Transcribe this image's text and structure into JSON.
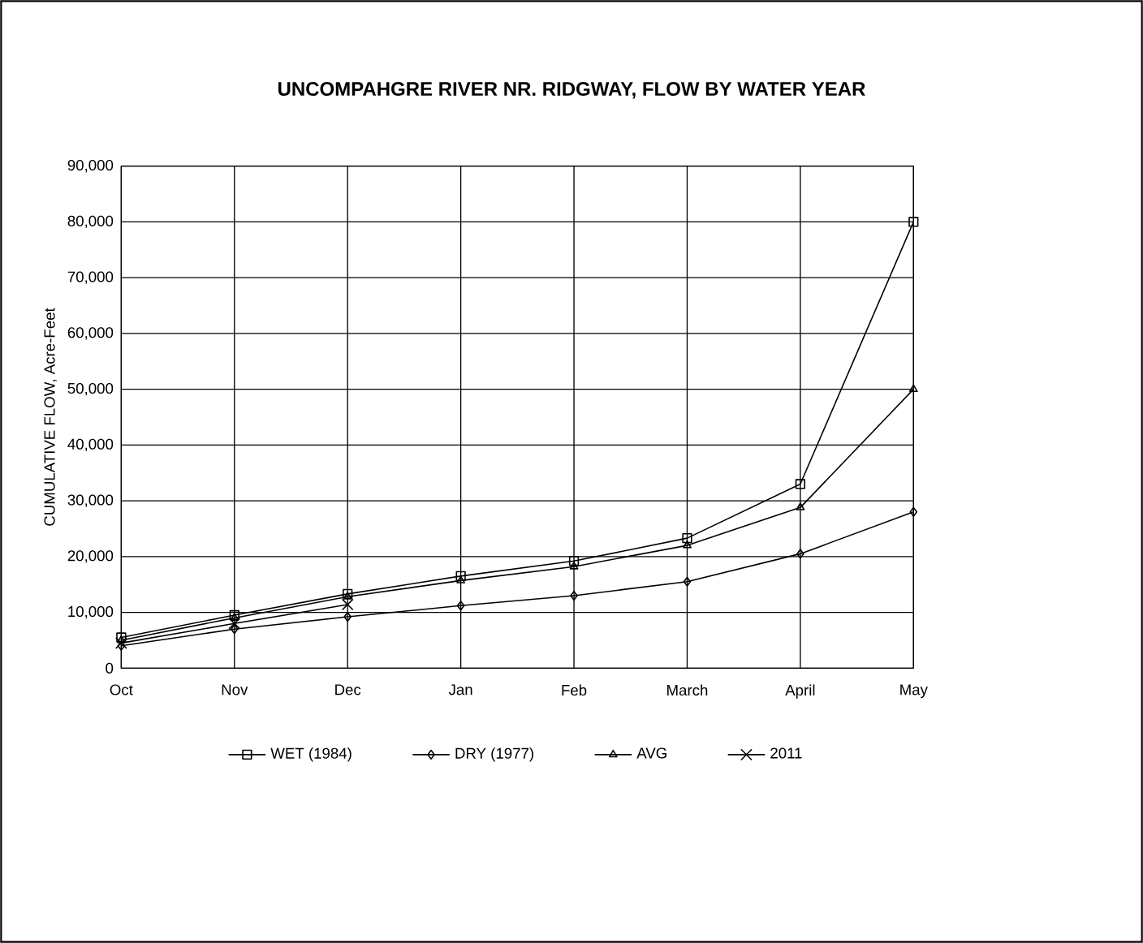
{
  "chart_data": {
    "type": "line",
    "title": "UNCOMPAHGRE RIVER NR. RIDGWAY, FLOW BY WATER YEAR",
    "ylabel": "CUMULATIVE FLOW, Acre-Feet",
    "categories": [
      "Oct",
      "Nov",
      "Dec",
      "Jan",
      "Feb",
      "March",
      "April",
      "May"
    ],
    "series": [
      {
        "name": "WET (1984)",
        "color": "#000000",
        "marker": "square",
        "values": [
          5500,
          9500,
          13300,
          16500,
          19200,
          23300,
          33000,
          80000
        ]
      },
      {
        "name": "DRY (1977)",
        "color": "#000000",
        "marker": "diamond",
        "values": [
          4000,
          7000,
          9200,
          11200,
          13000,
          15500,
          20500,
          28000
        ]
      },
      {
        "name": "AVG",
        "color": "#000000",
        "marker": "triangle",
        "values": [
          5000,
          9000,
          12800,
          15700,
          18200,
          22000,
          28800,
          50000
        ]
      },
      {
        "name": "2011",
        "color": "#000000",
        "marker": "cross",
        "values": [
          4500,
          8000,
          11400,
          null,
          null,
          null,
          null,
          null
        ]
      }
    ],
    "ylim": [
      0,
      90000
    ],
    "yticks": [
      {
        "value": 0,
        "label": "0"
      },
      {
        "value": 10000,
        "label": "10,000"
      },
      {
        "value": 20000,
        "label": "20,000"
      },
      {
        "value": 30000,
        "label": "30,000"
      },
      {
        "value": 40000,
        "label": "40,000"
      },
      {
        "value": 50000,
        "label": "50,000"
      },
      {
        "value": 60000,
        "label": "60,000"
      },
      {
        "value": 70000,
        "label": "70,000"
      },
      {
        "value": 80000,
        "label": "80,000"
      },
      {
        "value": 90000,
        "label": "90,000"
      }
    ],
    "grid": true,
    "legend": "bottom",
    "line_style": "solid"
  }
}
